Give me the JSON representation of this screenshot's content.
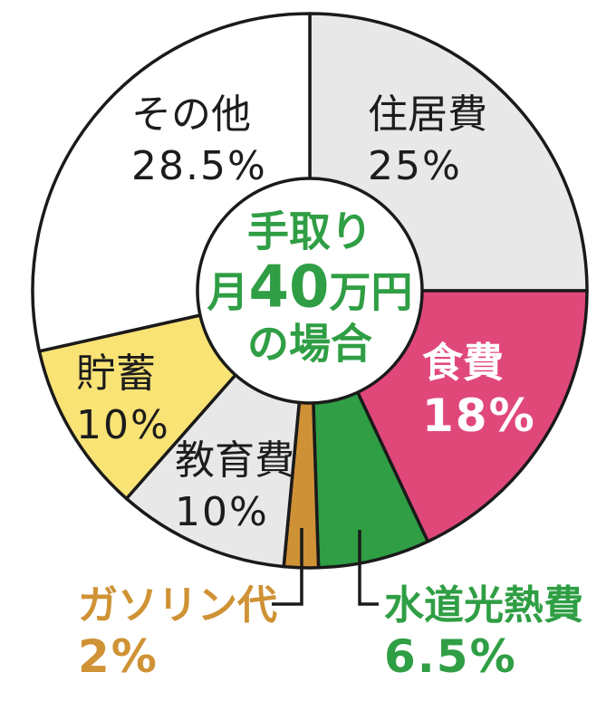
{
  "chart_data": {
    "type": "pie",
    "title": "手取り月40万円の場合",
    "direction": "clockwise",
    "start_angle_deg": 0,
    "legend_position": "none",
    "outline_color": "#1a1a1a",
    "center": {
      "line1": "手取り",
      "line2_pre": "月",
      "line2_num": "40",
      "line2_post": "万円",
      "line3": "の場合",
      "text_color": "#2f9e44"
    },
    "segments": [
      {
        "label": "住居費",
        "value": 25,
        "display": "25%",
        "color": "#e8e8e8",
        "text_color": "#1c1c1c"
      },
      {
        "label": "食費",
        "value": 18,
        "display": "18%",
        "color": "#e0487a",
        "text_color": "#ffffff"
      },
      {
        "label": "水道光熱費",
        "value": 6.5,
        "display": "6.5%",
        "color": "#2f9e44",
        "text_color": "#2f9e44"
      },
      {
        "label": "ガソリン代",
        "value": 2,
        "display": "2%",
        "color": "#cf9136",
        "text_color": "#cf9234"
      },
      {
        "label": "教育費",
        "value": 10,
        "display": "10%",
        "color": "#e8e8e8",
        "text_color": "#1c1c1c"
      },
      {
        "label": "貯蓄",
        "value": 10,
        "display": "10%",
        "color": "#f9e375",
        "text_color": "#1c1c1c"
      },
      {
        "label": "その他",
        "value": 28.5,
        "display": "28.5%",
        "color": "#ffffff",
        "text_color": "#1c1c1c"
      }
    ]
  }
}
